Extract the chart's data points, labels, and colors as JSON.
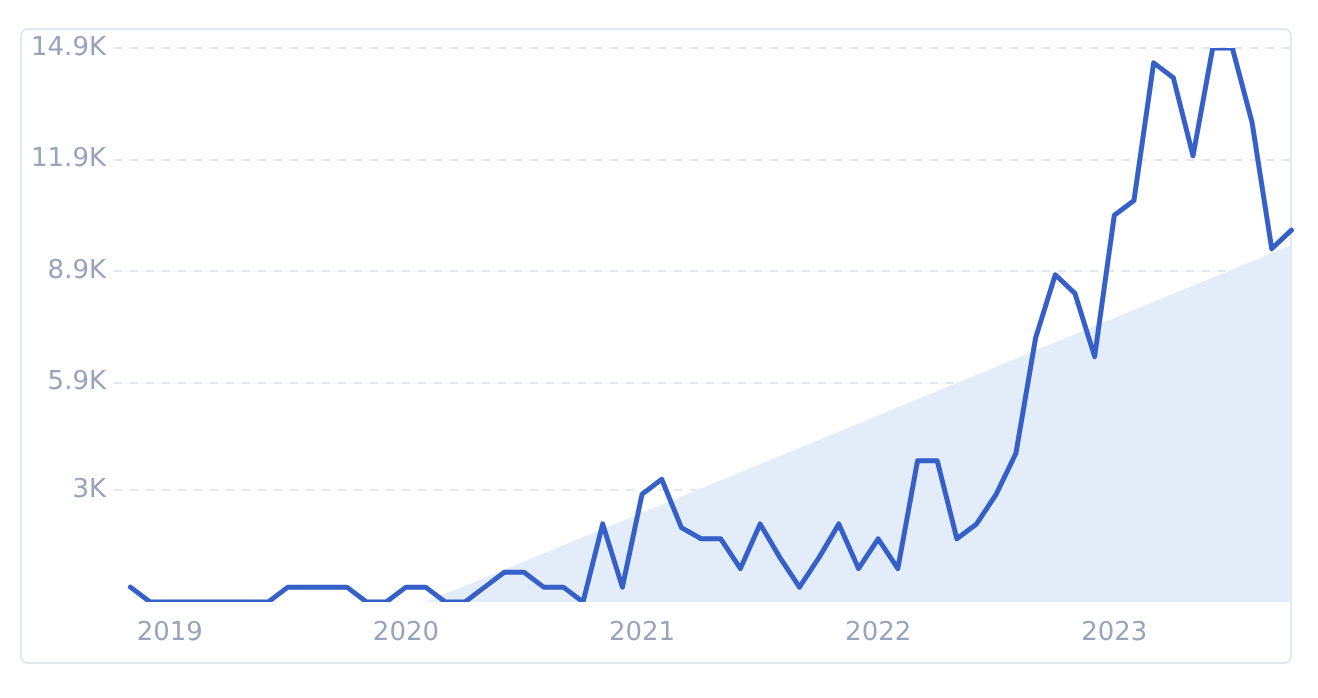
{
  "chart_data": {
    "type": "line",
    "x": [
      "2018-11",
      "2018-12",
      "2019-01",
      "2019-02",
      "2019-03",
      "2019-04",
      "2019-05",
      "2019-06",
      "2019-07",
      "2019-08",
      "2019-09",
      "2019-10",
      "2019-11",
      "2019-12",
      "2020-01",
      "2020-02",
      "2020-03",
      "2020-04",
      "2020-05",
      "2020-06",
      "2020-07",
      "2020-08",
      "2020-09",
      "2020-10",
      "2020-11",
      "2020-12",
      "2021-01",
      "2021-02",
      "2021-03",
      "2021-04",
      "2021-05",
      "2021-06",
      "2021-07",
      "2021-08",
      "2021-09",
      "2021-10",
      "2021-11",
      "2021-12",
      "2022-01",
      "2022-02",
      "2022-03",
      "2022-04",
      "2022-05",
      "2022-06",
      "2022-07",
      "2022-08",
      "2022-09",
      "2022-10",
      "2022-11",
      "2022-12",
      "2023-01",
      "2023-02",
      "2023-03",
      "2023-04",
      "2023-05",
      "2023-06",
      "2023-07",
      "2023-08",
      "2023-09",
      "2023-10"
    ],
    "series": [
      {
        "type": "area",
        "color": "#e3edf9",
        "x": [
          "2020-02",
          "2023-10"
        ],
        "values": [
          0,
          9600
        ]
      },
      {
        "color": "#3560c8",
        "values": [
          400,
          0,
          0,
          0,
          0,
          0,
          0,
          0,
          400,
          400,
          400,
          400,
          0,
          0,
          400,
          400,
          0,
          0,
          400,
          800,
          800,
          400,
          400,
          0,
          2100,
          400,
          2900,
          3300,
          2000,
          1700,
          1700,
          900,
          2100,
          1200,
          400,
          1200,
          2100,
          900,
          1700,
          900,
          3800,
          3800,
          1700,
          2100,
          2900,
          4000,
          7100,
          8800,
          8300,
          6600,
          10400,
          10800,
          14500,
          14100,
          12000,
          14900,
          14900,
          12900,
          9500,
          10000
        ]
      }
    ],
    "xlim": [
      "2018-10-06",
      "2023-10-05"
    ],
    "xticks": [
      "2019",
      "2020",
      "2021",
      "2022",
      "2023"
    ],
    "ylim": [
      0,
      14900
    ],
    "yticks": [
      {
        "value": 3000,
        "label": "3K"
      },
      {
        "value": 5900,
        "label": "5.9K"
      },
      {
        "value": 8900,
        "label": "8.9K"
      },
      {
        "value": 11900,
        "label": "11.9K"
      },
      {
        "value": 14900,
        "label": "14.9K"
      }
    ],
    "grid": "y",
    "legend": false,
    "marker": "none",
    "line_style": "solid"
  }
}
